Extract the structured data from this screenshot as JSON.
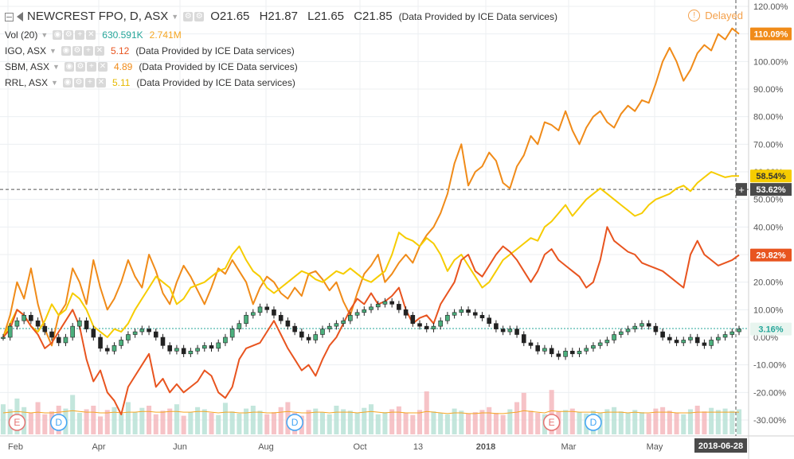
{
  "header": {
    "main_symbol": "NEWCREST FPO, D, ASX",
    "ohlc": {
      "open": "O21.65",
      "high": "H21.87",
      "low": "L21.65",
      "close": "C21.85"
    },
    "provider": "(Data Provided by ICE Data services)",
    "delayed": "Delayed"
  },
  "legend": {
    "vol": {
      "label": "Vol (20)",
      "v1": "630.591K",
      "v2": "2.741M",
      "v1_color": "#26a69a",
      "v2_color": "#f5a623"
    },
    "compare": [
      {
        "label": "IGO, ASX",
        "value": "5.12",
        "provider": "(Data Provided by ICE Data services)",
        "color": "#e8541f"
      },
      {
        "label": "SBM, ASX",
        "value": "4.89",
        "provider": "(Data Provided by ICE Data services)",
        "color": "#f08b19"
      },
      {
        "label": "RRL, ASX",
        "value": "5.11",
        "provider": "(Data Provided by ICE Data services)",
        "color": "#f6cc00"
      }
    ]
  },
  "chart_data": {
    "type": "line",
    "x_axis_labels": [
      "Feb",
      "Apr",
      "Jun",
      "Aug",
      "Oct",
      "13",
      "2018",
      "Mar",
      "May"
    ],
    "x_axis_current": "2018-06-28",
    "y_axis_labels": [
      "120.00%",
      "110.00%",
      "100.00%",
      "90.00%",
      "80.00%",
      "70.00%",
      "60.00%",
      "50.00%",
      "40.00%",
      "30.00%",
      "20.00%",
      "10.00%",
      "0.00%",
      "-10.00%",
      "-20.00%",
      "-30.00%"
    ],
    "ylim": [
      -30,
      120
    ],
    "series": [
      {
        "name": "SBM, ASX",
        "color": "#f08b19",
        "last_label": "110.09%",
        "values": [
          0,
          8,
          20,
          14,
          25,
          12,
          3,
          -3,
          8,
          12,
          25,
          20,
          12,
          28,
          18,
          10,
          14,
          20,
          28,
          22,
          18,
          30,
          24,
          16,
          12,
          20,
          26,
          22,
          17,
          12,
          18,
          25,
          23,
          28,
          24,
          20,
          12,
          18,
          22,
          20,
          16,
          14,
          18,
          15,
          23,
          24,
          21,
          17,
          20,
          13,
          8,
          16,
          23,
          26,
          30,
          20,
          23,
          27,
          30,
          27,
          33,
          37,
          40,
          45,
          52,
          63,
          70,
          55,
          60,
          62,
          67,
          64,
          56,
          54,
          62,
          66,
          73,
          70,
          78,
          77,
          75,
          82,
          75,
          70,
          76,
          80,
          82,
          78,
          76,
          81,
          84,
          82,
          86,
          85,
          92,
          100,
          105,
          100,
          93,
          97,
          103,
          106,
          104,
          110,
          108,
          112,
          110
        ]
      },
      {
        "name": "RRL, ASX",
        "color": "#f6cc00",
        "last_label": "58.54%",
        "values": [
          0,
          5,
          10,
          8,
          4,
          2,
          6,
          12,
          8,
          10,
          16,
          14,
          10,
          4,
          2,
          0,
          3,
          2,
          5,
          10,
          14,
          18,
          22,
          20,
          18,
          12,
          14,
          18,
          19,
          20,
          22,
          24,
          25,
          30,
          33,
          28,
          24,
          22,
          18,
          16,
          18,
          20,
          22,
          24,
          23,
          21,
          20,
          22,
          24,
          23,
          25,
          23,
          21,
          20,
          22,
          24,
          30,
          38,
          36,
          35,
          33,
          36,
          34,
          30,
          24,
          28,
          30,
          26,
          22,
          18,
          20,
          24,
          28,
          30,
          32,
          34,
          36,
          35,
          40,
          42,
          45,
          48,
          44,
          47,
          50,
          52,
          54,
          52,
          50,
          48,
          46,
          44,
          45,
          48,
          50,
          51,
          52,
          54,
          55,
          53,
          56,
          58,
          60,
          59,
          58,
          58.5,
          58.5
        ]
      },
      {
        "name": "IGO, ASX",
        "color": "#e8541f",
        "last_label": "29.82%",
        "values": [
          0,
          3,
          10,
          8,
          4,
          1,
          -4,
          -2,
          2,
          6,
          10,
          4,
          -8,
          -16,
          -12,
          -20,
          -23,
          -28,
          -18,
          -14,
          -10,
          -6,
          -18,
          -15,
          -20,
          -17,
          -20,
          -18,
          -16,
          -12,
          -14,
          -20,
          -22,
          -18,
          -8,
          -4,
          -3,
          -2,
          2,
          6,
          1,
          -4,
          -8,
          -12,
          -10,
          -14,
          -8,
          -3,
          0,
          5,
          10,
          14,
          12,
          16,
          12,
          13,
          15,
          18,
          10,
          5,
          7,
          8,
          5,
          12,
          16,
          20,
          28,
          30,
          24,
          22,
          26,
          30,
          33,
          31,
          28,
          24,
          20,
          24,
          30,
          32,
          28,
          26,
          24,
          22,
          18,
          20,
          28,
          40,
          35,
          33,
          31,
          30,
          27,
          26,
          25,
          24,
          22,
          20,
          18,
          30,
          35,
          30,
          28,
          26,
          27,
          28,
          29.82
        ]
      },
      {
        "name": "NEWCREST FPO, D, ASX",
        "color": "#333333",
        "type": "candlestick",
        "last_label": "3.16%",
        "values": [
          0,
          4,
          6,
          8,
          6,
          4,
          2,
          0,
          -2,
          0,
          4,
          6,
          3,
          0,
          -4,
          -5,
          -3,
          -1,
          1,
          2,
          3,
          2,
          0,
          -3,
          -5,
          -4,
          -6,
          -5,
          -4,
          -3,
          -4,
          -2,
          0,
          3,
          5,
          8,
          9,
          11,
          10,
          8,
          6,
          4,
          2,
          0,
          -1,
          1,
          3,
          4,
          5,
          6,
          8,
          9,
          10,
          11,
          12,
          13,
          12,
          10,
          8,
          5,
          4,
          3,
          4,
          6,
          8,
          9,
          10,
          9,
          8,
          7,
          5,
          3,
          2,
          3,
          1,
          -2,
          -3,
          -5,
          -4,
          -6,
          -7,
          -5,
          -6,
          -5,
          -4,
          -3,
          -2,
          -1,
          1,
          2,
          3,
          4,
          5,
          4,
          2,
          0,
          -1,
          -2,
          -1,
          0,
          -2,
          -3,
          -1,
          0,
          1,
          2,
          3
        ]
      }
    ],
    "volume": [
      42,
      35,
      50,
      38,
      30,
      45,
      28,
      32,
      40,
      36,
      55,
      30,
      35,
      40,
      25,
      34,
      38,
      29,
      45,
      31,
      37,
      40,
      28,
      33,
      36,
      42,
      26,
      31,
      38,
      35,
      30,
      27,
      44,
      32,
      29,
      36,
      40,
      33,
      28,
      31,
      38,
      45,
      30,
      26,
      34,
      36,
      31,
      28,
      40,
      35,
      33,
      30,
      37,
      42,
      28,
      31,
      35,
      39,
      30,
      27,
      34,
      60,
      32,
      30,
      28,
      36,
      33,
      29,
      31,
      34,
      38,
      30,
      27,
      35,
      45,
      58,
      33,
      30,
      28,
      62,
      32,
      34,
      36,
      31,
      29,
      33,
      30,
      35,
      38,
      32,
      30,
      34,
      31,
      29,
      36,
      38,
      33,
      30,
      28,
      35,
      40,
      32,
      37,
      34,
      36,
      33,
      35
    ],
    "volume_ma": [
      30,
      31,
      32,
      31,
      30,
      31,
      30,
      30,
      31,
      32,
      33,
      32,
      31,
      31,
      30,
      30,
      31,
      30,
      31,
      31,
      32,
      32,
      31,
      31,
      32,
      32,
      31,
      31,
      32,
      32,
      31,
      30,
      31,
      31,
      30,
      30,
      31,
      31,
      30,
      30,
      31,
      32,
      31,
      30,
      30,
      31,
      31,
      30,
      31,
      31,
      31,
      30,
      31,
      32,
      31,
      30,
      31,
      31,
      30,
      30,
      30,
      32,
      31,
      30,
      29,
      30,
      30,
      29,
      29,
      30,
      30,
      29,
      29,
      30,
      31,
      33,
      32,
      31,
      30,
      33,
      32,
      32,
      32,
      31,
      31,
      31,
      30,
      31,
      31,
      31,
      30,
      31,
      30,
      30,
      31,
      31,
      31,
      30,
      30,
      30,
      31,
      31,
      31,
      31,
      31,
      31,
      31
    ],
    "event_markers": [
      {
        "label": "E",
        "index": 2,
        "color": "#e57373"
      },
      {
        "label": "D",
        "index": 8,
        "color": "#42a5f5"
      },
      {
        "label": "D",
        "index": 42,
        "color": "#42a5f5"
      },
      {
        "label": "E",
        "index": 79,
        "color": "#e57373"
      },
      {
        "label": "D",
        "index": 85,
        "color": "#42a5f5"
      }
    ],
    "crosshair": {
      "y_value": 53.62,
      "y_label": "53.62%"
    },
    "zero_line_value": 3.16,
    "grid": true
  }
}
